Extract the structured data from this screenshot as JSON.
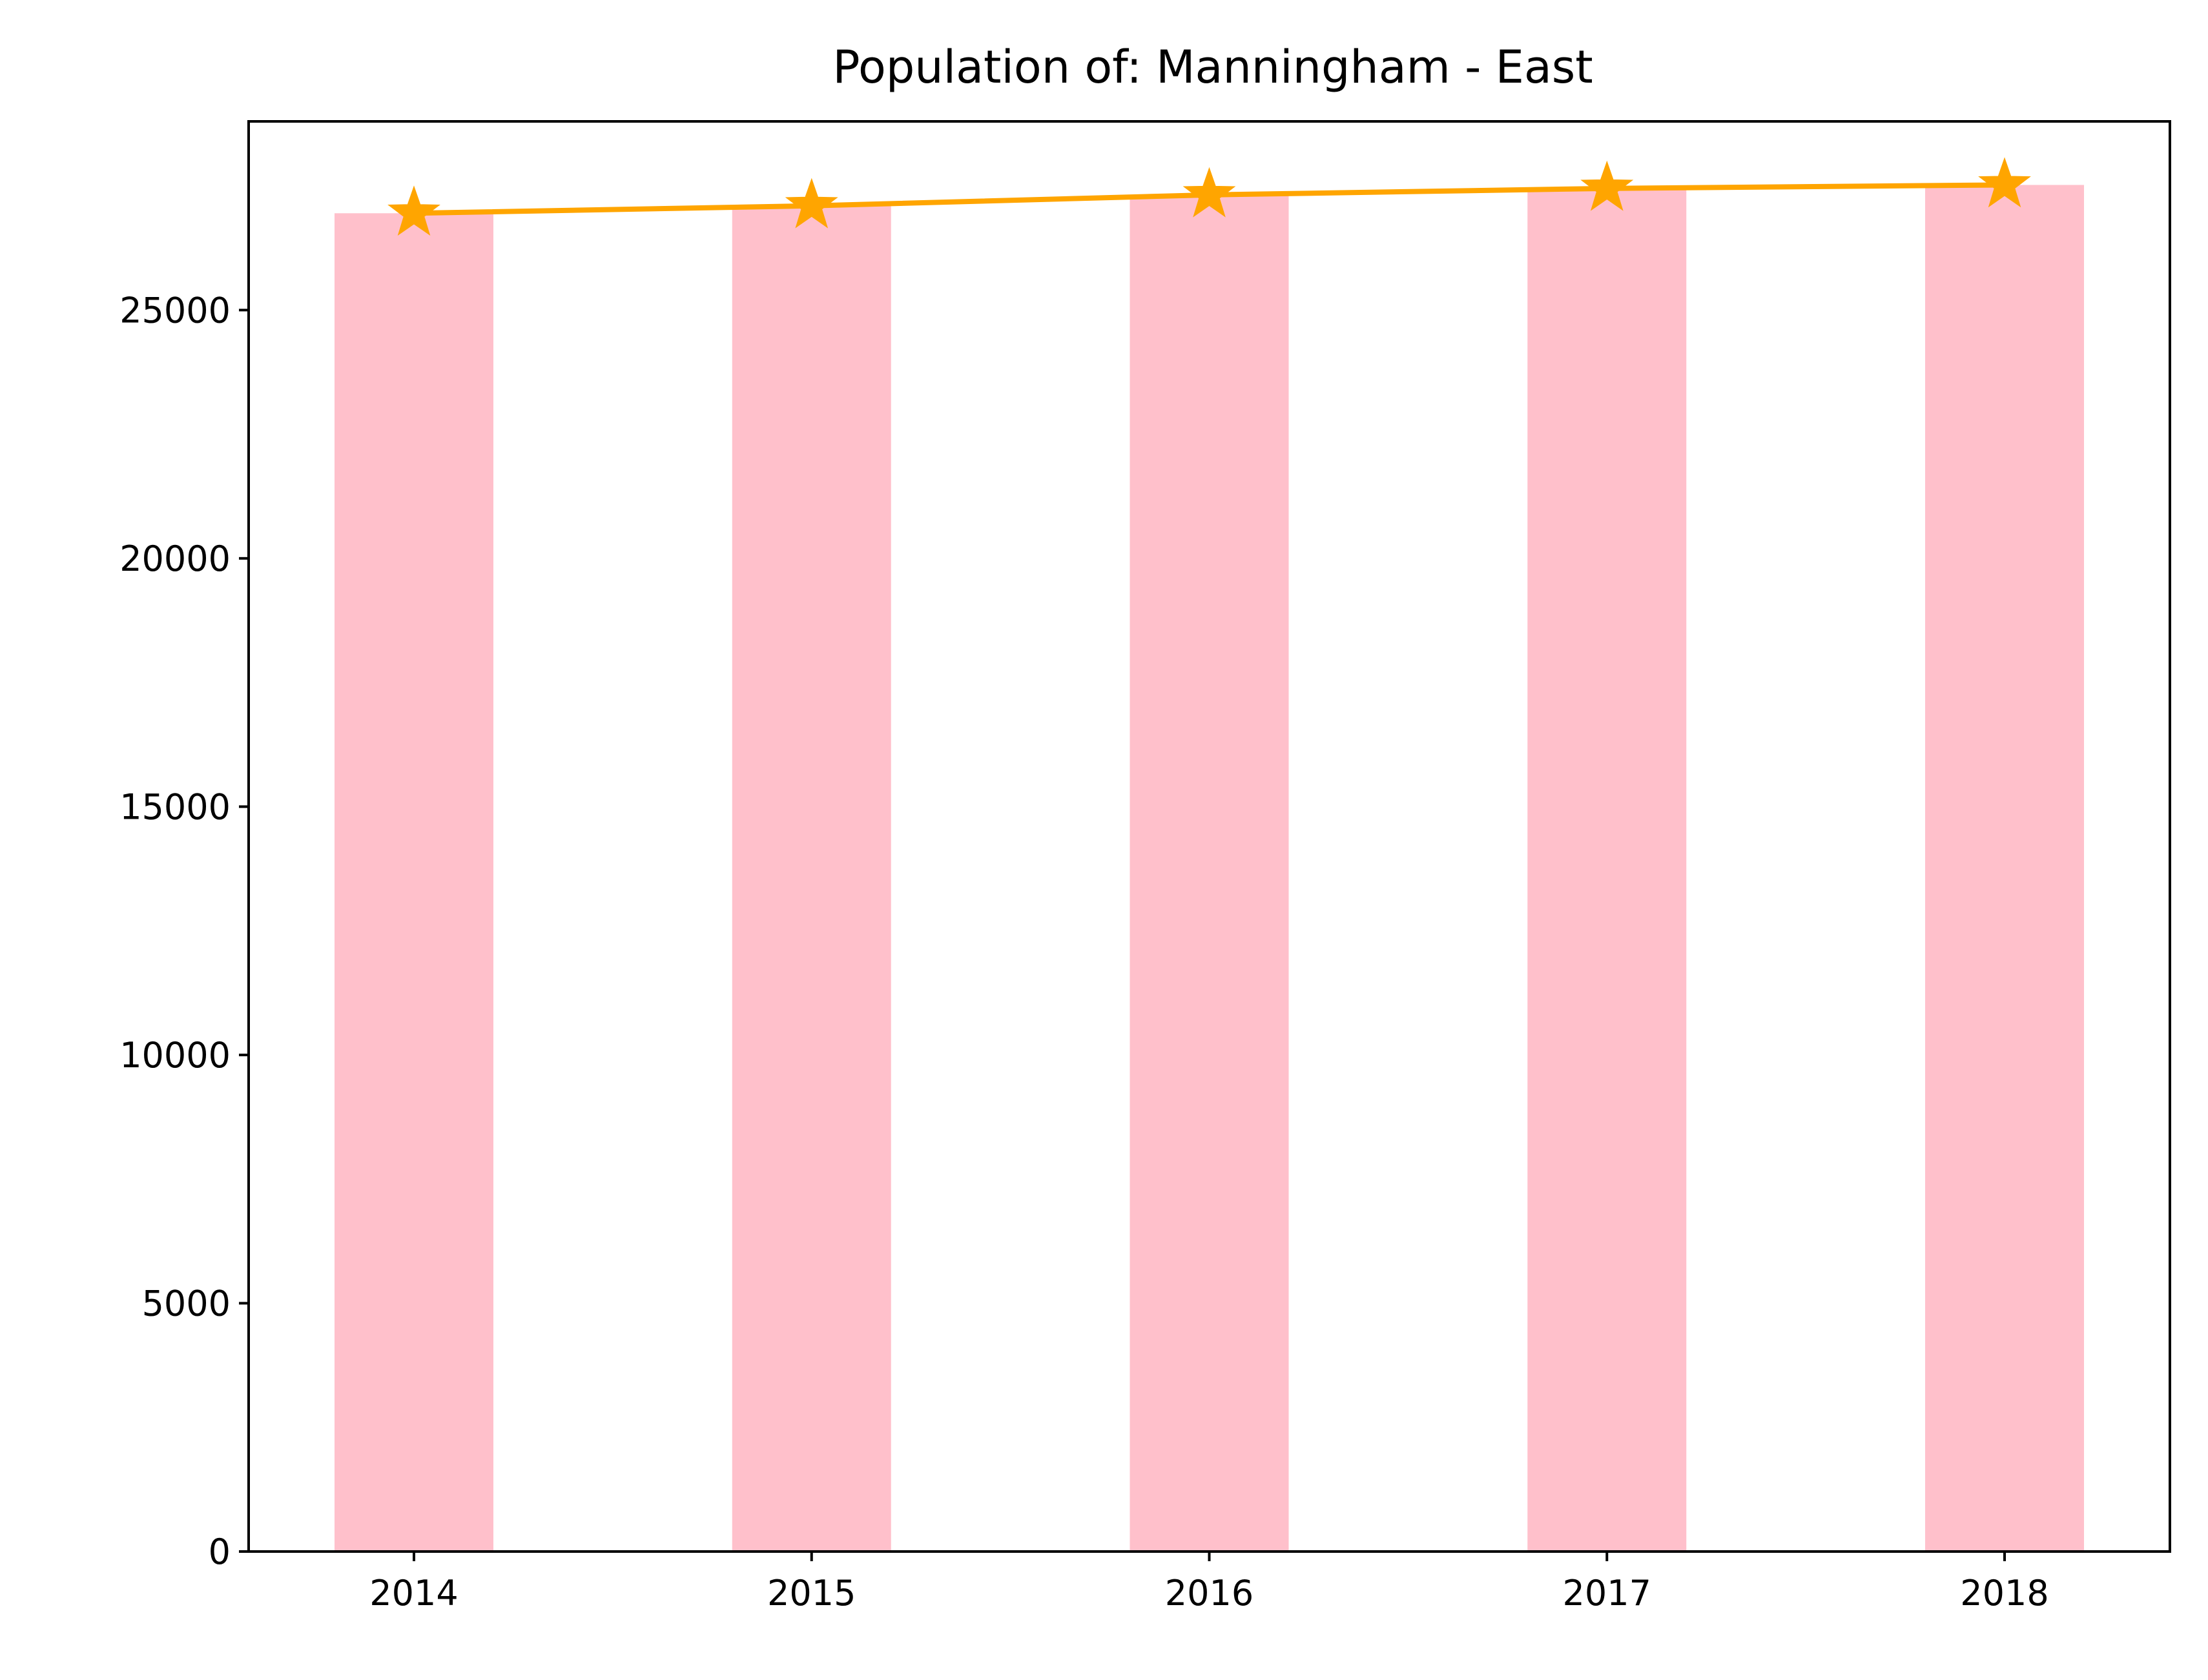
{
  "chart_data": {
    "type": "bar",
    "title": "Population of: Manningham - East",
    "xlabel": "",
    "ylabel": "",
    "categories": [
      "2014",
      "2015",
      "2016",
      "2017",
      "2018"
    ],
    "y_ticks": [
      0,
      5000,
      10000,
      15000,
      20000,
      25000
    ],
    "ylim": [
      0,
      28800
    ],
    "grid": false,
    "series": [
      {
        "type": "bar",
        "values": [
          26950,
          27100,
          27320,
          27450,
          27520
        ],
        "color": "#ffc0cb"
      },
      {
        "type": "line",
        "marker": "star",
        "values": [
          26950,
          27100,
          27320,
          27450,
          27520
        ],
        "color": "#ffa500"
      }
    ]
  }
}
